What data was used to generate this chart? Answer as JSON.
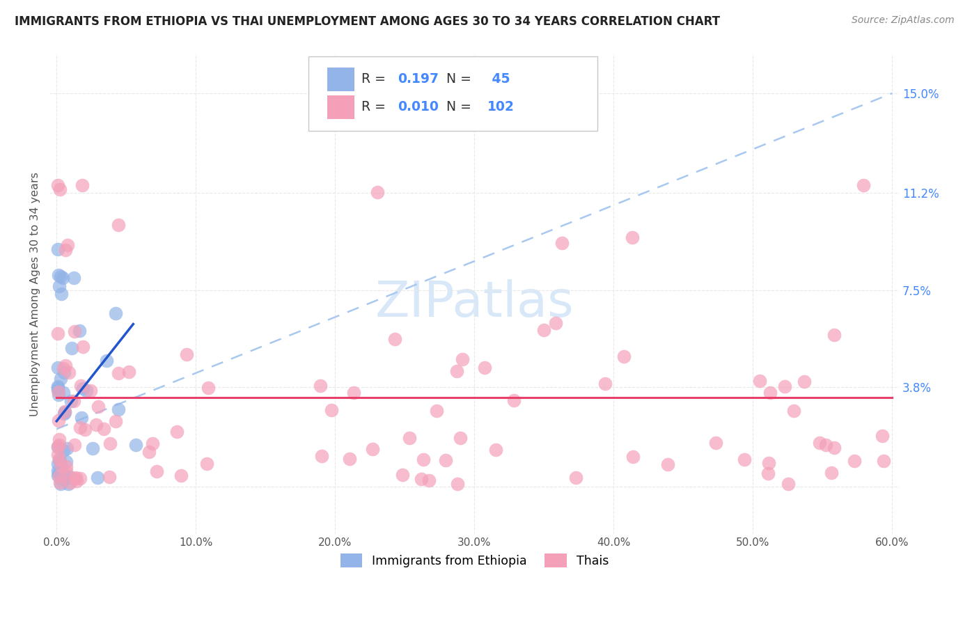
{
  "title": "IMMIGRANTS FROM ETHIOPIA VS THAI UNEMPLOYMENT AMONG AGES 30 TO 34 YEARS CORRELATION CHART",
  "source": "Source: ZipAtlas.com",
  "ylabel": "Unemployment Among Ages 30 to 34 years",
  "xlim": [
    -0.005,
    0.605
  ],
  "ylim": [
    -0.018,
    0.165
  ],
  "ethiopia_R": "0.197",
  "ethiopia_N": "45",
  "thai_R": "0.010",
  "thai_N": "102",
  "ethiopia_dot_color": "#92b4e8",
  "thai_dot_color": "#f4a0b8",
  "ethiopia_line_color": "#2255cc",
  "thai_line_color": "#e8406a",
  "trendline_dashed_color": "#a8c8f0",
  "legend_border_color": "#c8c8c8",
  "grid_color": "#e8e8e8",
  "title_color": "#222222",
  "label_color": "#555555",
  "right_axis_color": "#4488ff",
  "watermark_color": "#d8e8f8",
  "xtick_vals": [
    0.0,
    0.1,
    0.2,
    0.3,
    0.4,
    0.5,
    0.6
  ],
  "xtick_labels": [
    "0.0%",
    "10.0%",
    "20.0%",
    "30.0%",
    "40.0%",
    "50.0%",
    "60.0%"
  ],
  "ytick_vals": [
    0.0,
    0.038,
    0.075,
    0.112,
    0.15
  ],
  "ytick_labels_right": [
    "15.0%",
    "11.2%",
    "7.5%",
    "3.8%"
  ],
  "ytick_vals_right": [
    0.15,
    0.112,
    0.075,
    0.038
  ],
  "eth_seed": 42,
  "thai_seed": 99,
  "eth_n": 45,
  "thai_n": 102,
  "eth_line_x0": 0.0,
  "eth_line_x1": 0.055,
  "eth_line_y0": 0.025,
  "eth_line_y1": 0.062,
  "dash_line_x0": 0.0,
  "dash_line_x1": 0.6,
  "dash_line_y0": 0.022,
  "dash_line_y1": 0.15,
  "thai_line_y": 0.034
}
